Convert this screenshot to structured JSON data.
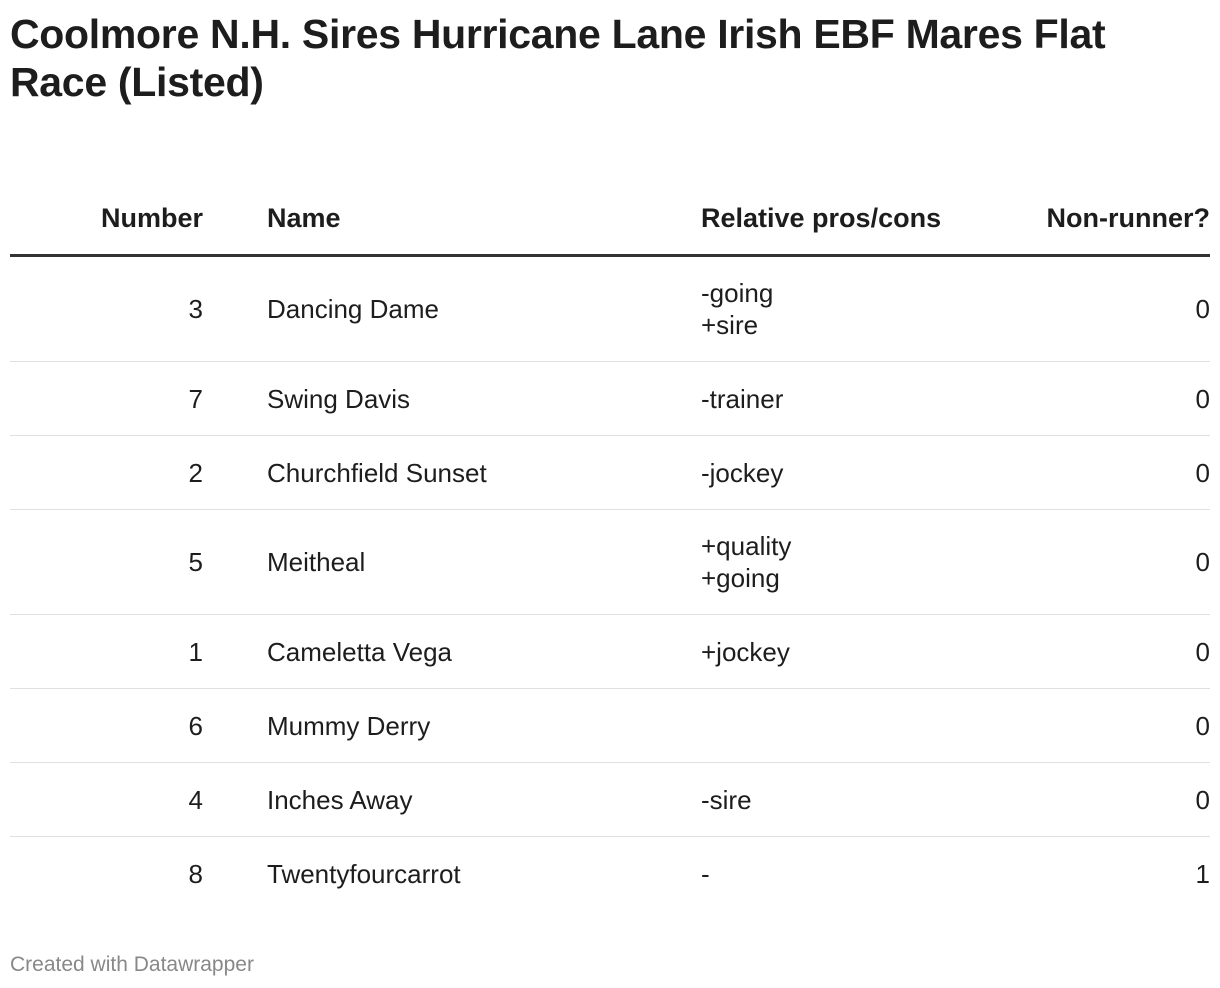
{
  "title": "Coolmore N.H. Sires Hurricane Lane Irish EBF Mares Flat Race (Listed)",
  "columns": {
    "number": "Number",
    "name": "Name",
    "pros_cons": "Relative pros/cons",
    "non_runner": "Non-runner?"
  },
  "rows": [
    {
      "number": "3",
      "name": "Dancing Dame",
      "pros_cons": [
        "-going",
        "+sire"
      ],
      "non_runner": "0"
    },
    {
      "number": "7",
      "name": "Swing Davis",
      "pros_cons": [
        "-trainer"
      ],
      "non_runner": "0"
    },
    {
      "number": "2",
      "name": "Churchfield Sunset",
      "pros_cons": [
        "-jockey"
      ],
      "non_runner": "0"
    },
    {
      "number": "5",
      "name": "Meitheal",
      "pros_cons": [
        "+quality",
        "+going"
      ],
      "non_runner": "0"
    },
    {
      "number": "1",
      "name": "Cameletta Vega",
      "pros_cons": [
        "+jockey"
      ],
      "non_runner": "0"
    },
    {
      "number": "6",
      "name": "Mummy Derry",
      "pros_cons": [],
      "non_runner": "0"
    },
    {
      "number": "4",
      "name": "Inches Away",
      "pros_cons": [
        "-sire"
      ],
      "non_runner": "0"
    },
    {
      "number": "8",
      "name": "Twentyfourcarrot",
      "pros_cons": [
        "-"
      ],
      "non_runner": "1"
    }
  ],
  "footer": "Created with Datawrapper",
  "colors": {
    "text": "#1d1d1d",
    "header_rule": "#333333",
    "row_rule": "#e0e0e0",
    "footer_text": "#888888"
  }
}
